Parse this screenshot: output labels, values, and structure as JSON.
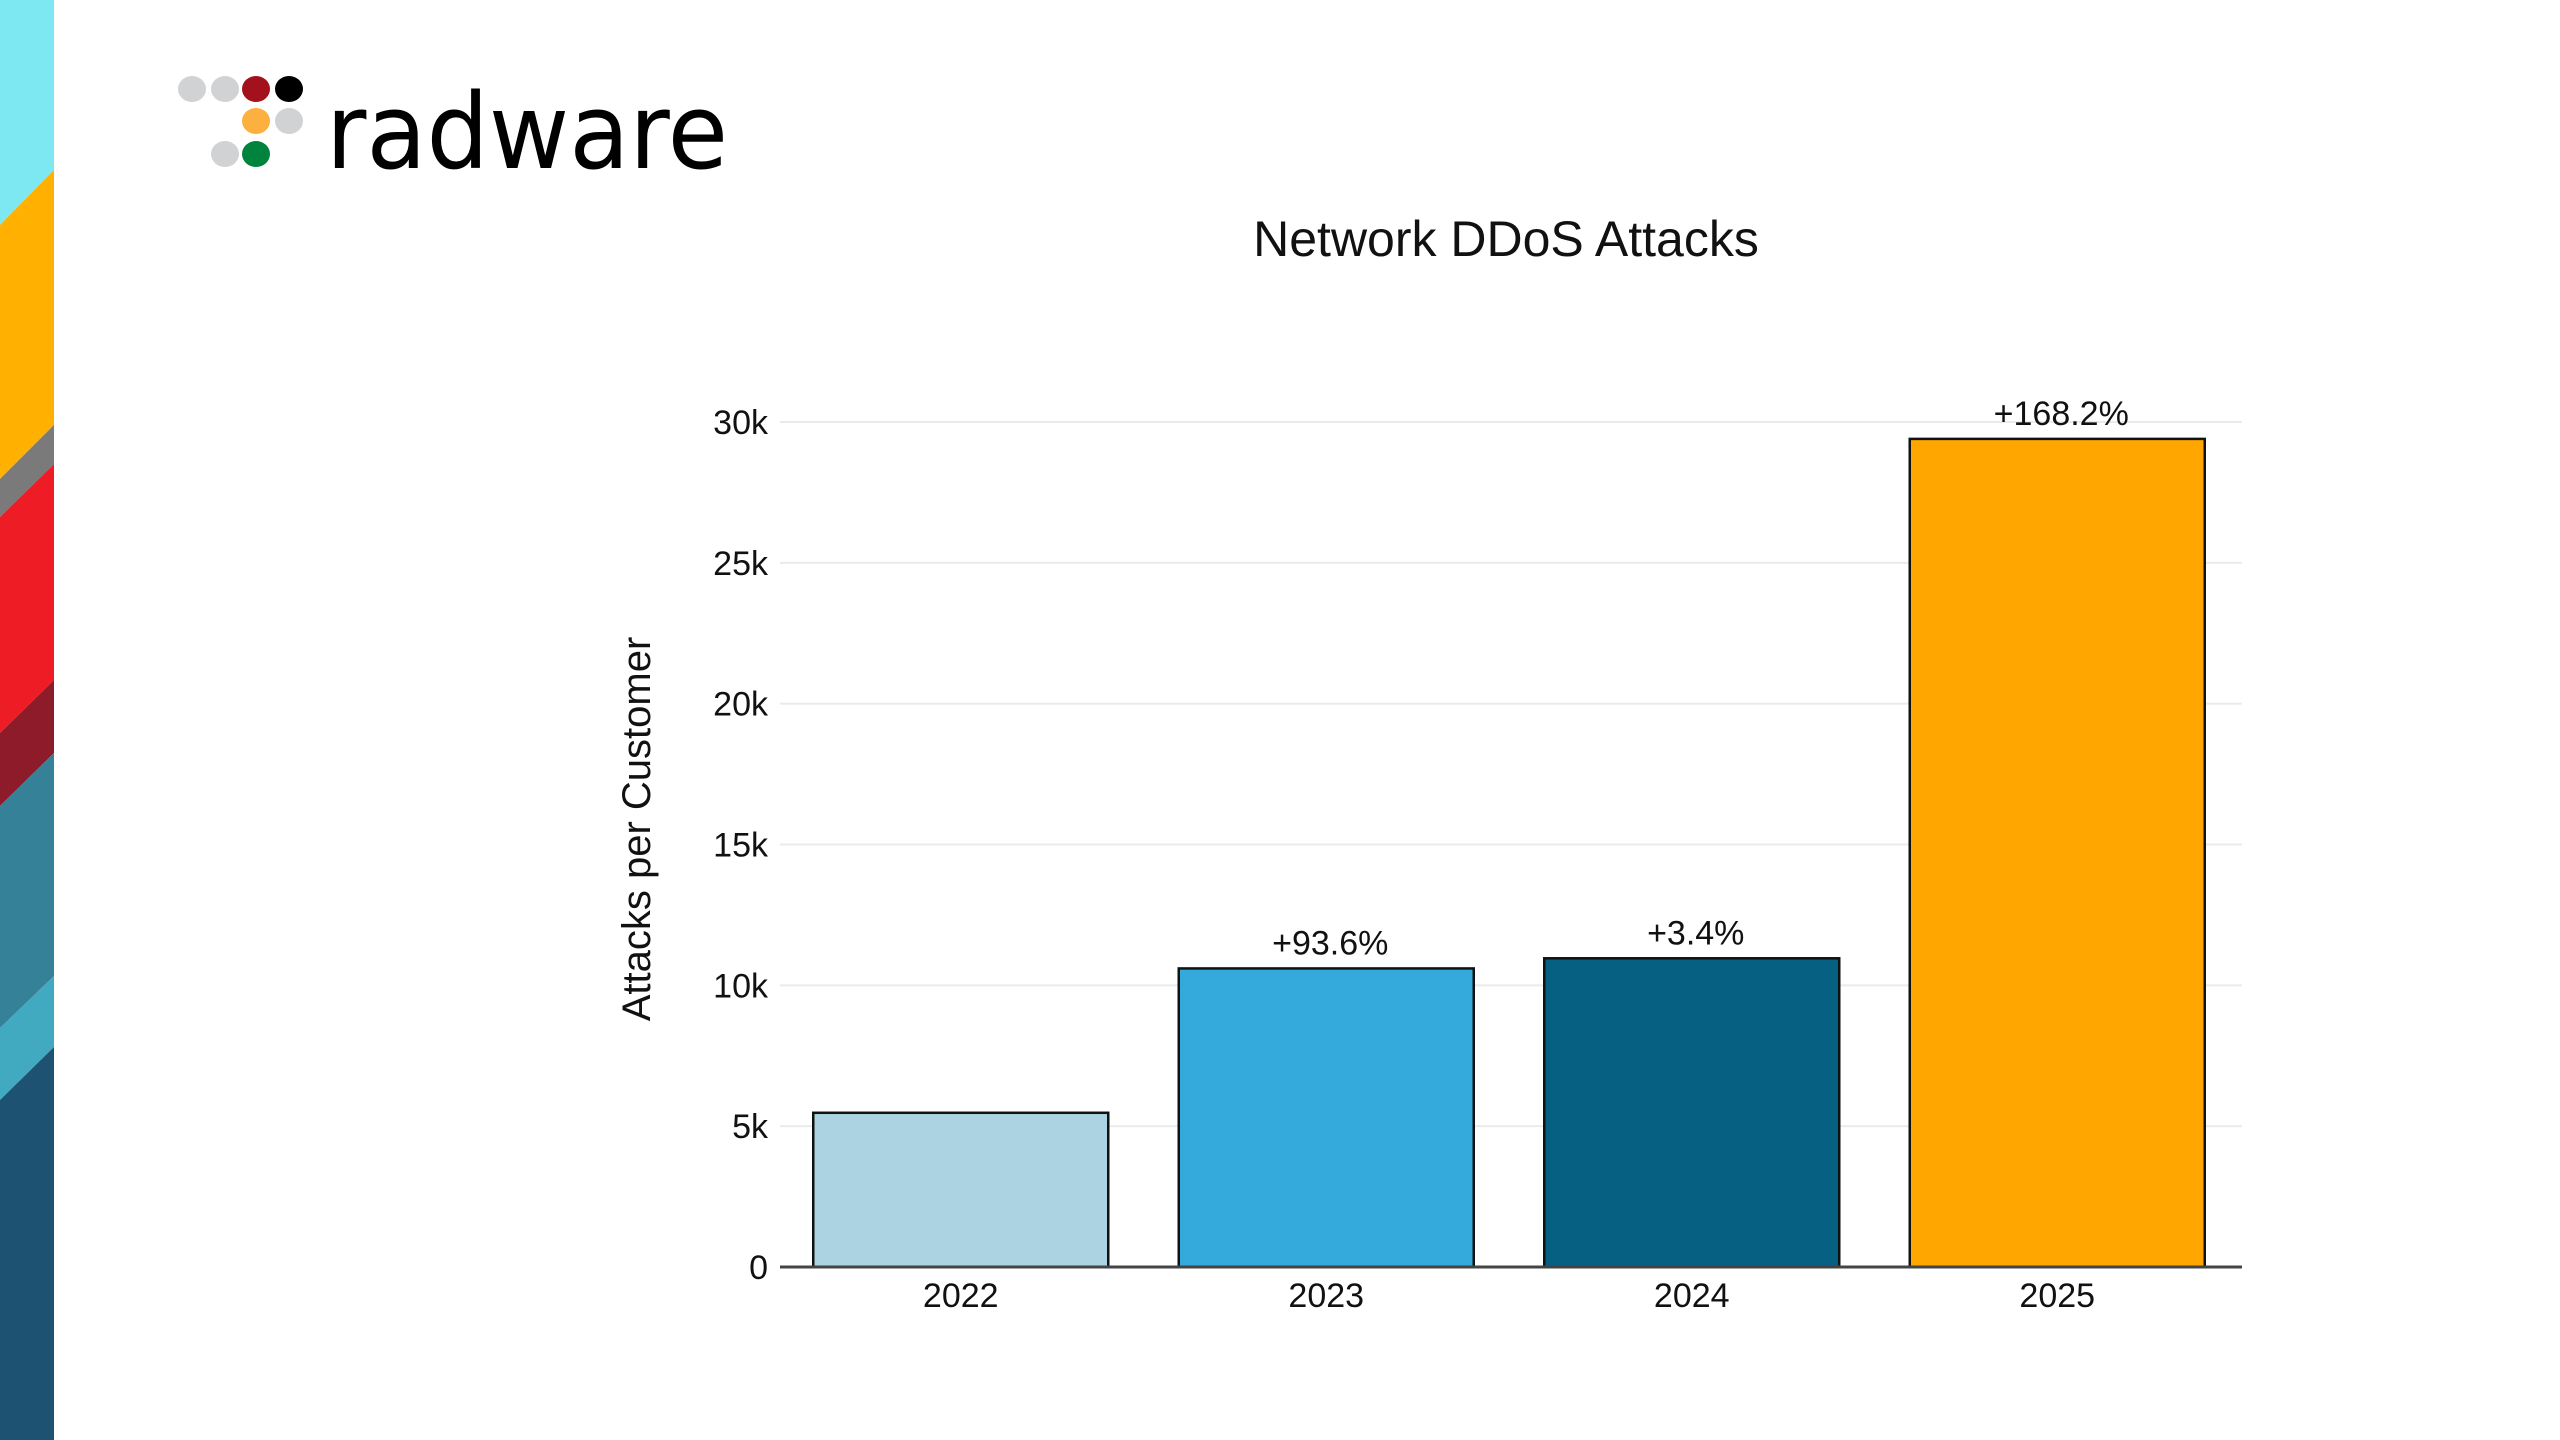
{
  "logo": {
    "text": "radware"
  },
  "stripe_colors": [
    "#7DE8F2",
    "#FFB000",
    "#7A7A7A",
    "#EE1C25",
    "#8E1B2A",
    "#358298",
    "#41AAC0",
    "#1E5272"
  ],
  "chart_data": {
    "type": "bar",
    "title": "Network DDoS Attacks",
    "xlabel": "",
    "ylabel": "Attacks per Customer",
    "categories": [
      "2022",
      "2023",
      "2024",
      "2025"
    ],
    "values": [
      5475,
      10600,
      10960,
      29400
    ],
    "data_labels": [
      "",
      "+93.6%",
      "+3.4%",
      "+168.2%"
    ],
    "colors": [
      "#ABD3E1",
      "#33AADB",
      "#066082",
      "#FFA600"
    ],
    "ylim": [
      0,
      30000
    ],
    "yticks": [
      0,
      5000,
      10000,
      15000,
      20000,
      25000,
      30000
    ],
    "ytick_labels": [
      "0",
      "5k",
      "10k",
      "15k",
      "20k",
      "25k",
      "30k"
    ],
    "grid": true,
    "legend": "none"
  }
}
